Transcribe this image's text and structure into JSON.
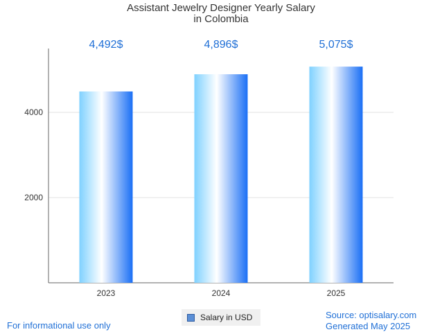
{
  "chart_data": {
    "type": "bar",
    "title_lines": [
      "Assistant Jewelry Designer Yearly Salary",
      "in Colombia"
    ],
    "categories": [
      "2023",
      "2024",
      "2025"
    ],
    "values": [
      4492,
      4896,
      5075
    ],
    "value_labels": [
      "4,492$",
      "4,896$",
      "5,075$"
    ],
    "y_ticks": [
      2000,
      4000
    ],
    "ylim": [
      0,
      5500
    ],
    "grid": true,
    "legend": "bottom-center",
    "series": [
      {
        "name": "Salary in USD",
        "values": [
          4492,
          4896,
          5075
        ]
      }
    ],
    "colors": {
      "bar_left": "#7fd1ff",
      "bar_mid": "#ffffff",
      "bar_right": "#1a6ff5",
      "value_label": "#1f6fd6",
      "grid": "#e2e2e2",
      "axis": "#666666"
    }
  },
  "legend": {
    "label": "Salary in USD"
  },
  "footer": {
    "left": "For informational use only",
    "source": "Source: optisalary.com",
    "generated": "Generated May 2025"
  }
}
